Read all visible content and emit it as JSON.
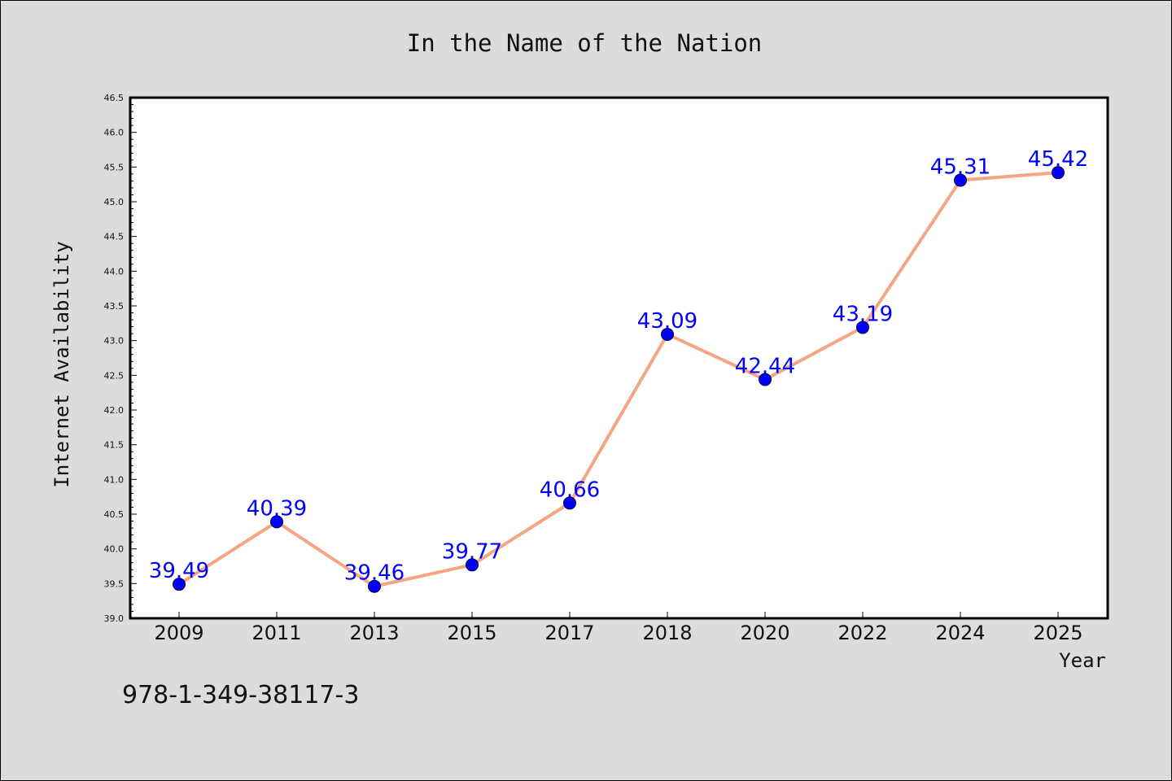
{
  "footer": {
    "code": "978-1-349-38117-3"
  },
  "colors": {
    "background": "#dcdcdc",
    "plot_bg": "#ffffff",
    "line": "#f4a582",
    "marker": "#0000ff",
    "label": "#0000ff"
  },
  "chart_data": {
    "type": "line",
    "title": "In the Name of the Nation",
    "xlabel": "Year",
    "ylabel": "Internet Availability",
    "categories": [
      "2009",
      "2011",
      "2013",
      "2015",
      "2017",
      "2018",
      "2020",
      "2022",
      "2024",
      "2025"
    ],
    "series": [
      {
        "values": [
          39.49,
          40.39,
          39.46,
          39.77,
          40.66,
          43.09,
          42.44,
          43.19,
          45.31,
          45.42
        ]
      }
    ],
    "data_labels": [
      "39.49",
      "40.39",
      "39.46",
      "39.77",
      "40.66",
      "43.09",
      "42.44",
      "43.19",
      "45.31",
      "45.42"
    ],
    "ylim": [
      39.0,
      46.5
    ],
    "yticks": [
      "39.0",
      "39.5",
      "40.0",
      "40.5",
      "41.0",
      "41.5",
      "42.0",
      "42.5",
      "43.0",
      "43.5",
      "44.0",
      "44.5",
      "45.0",
      "45.5",
      "46.0",
      "46.5"
    ],
    "grid": false,
    "legend": "none"
  }
}
